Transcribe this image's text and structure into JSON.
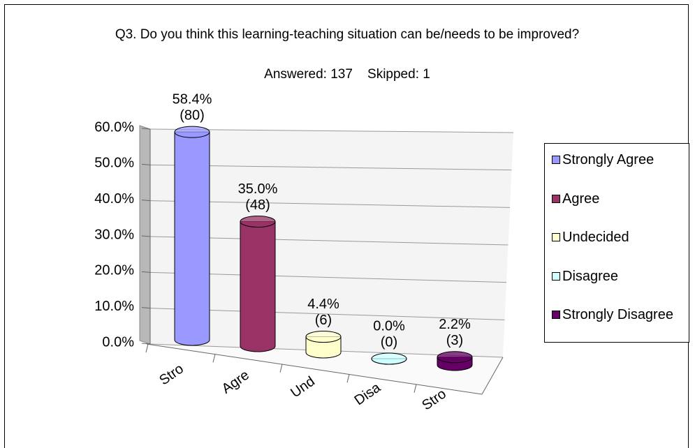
{
  "chart_data": {
    "type": "bar3d",
    "title": "Q3. Do you think this learning-teaching situation can be/needs to be improved?",
    "subtitle": "Answered: 137    Skipped: 1",
    "categories": [
      "Stro",
      "Agre",
      "Und",
      "Disa",
      "Stro"
    ],
    "values": [
      58.4,
      35.0,
      4.4,
      0.0,
      2.2
    ],
    "value_labels": [
      "58.4%",
      "35.0%",
      "4.4%",
      "0.0%",
      "2.2%"
    ],
    "count_labels": [
      "(80)",
      "(48)",
      "(6)",
      "(0)",
      "(3)"
    ],
    "legend": [
      "Strongly Agree",
      "Agree",
      "Undecided",
      "Disagree",
      "Strongly Disagree"
    ],
    "colors": [
      "#9999ff",
      "#993366",
      "#ffffcc",
      "#ccffff",
      "#660066"
    ],
    "ylim": [
      0,
      60
    ],
    "yticks": [
      {
        "value": 0,
        "label": "0.0%"
      },
      {
        "value": 10,
        "label": "10.0%"
      },
      {
        "value": 20,
        "label": "20.0%"
      },
      {
        "value": 30,
        "label": "30.0%"
      },
      {
        "value": 40,
        "label": "40.0%"
      },
      {
        "value": 50,
        "label": "50.0%"
      },
      {
        "value": 60,
        "label": "60.0%"
      }
    ],
    "grid": true
  }
}
